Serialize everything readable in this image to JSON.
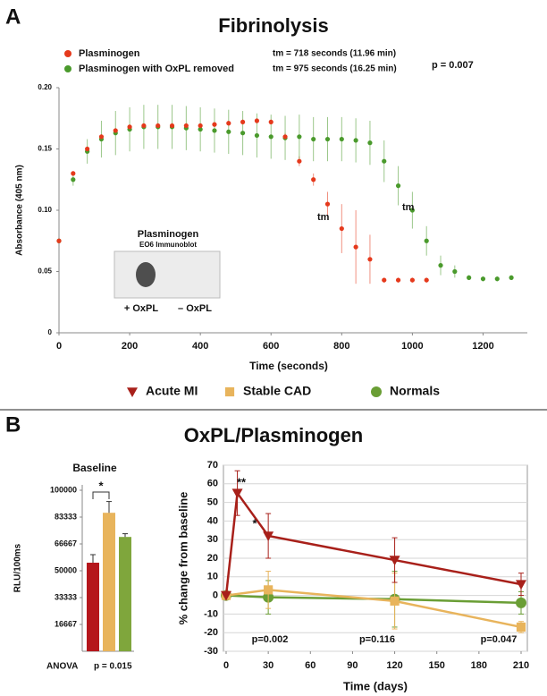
{
  "panel_labels": [
    "A",
    "B"
  ],
  "chart_data": [
    {
      "type": "scatter",
      "title": "Fibrinolysis",
      "x_label": "Time (seconds)",
      "y_label": "Absorbance (405 nm)",
      "xlim": [
        0,
        1300
      ],
      "xticks": [
        0,
        200,
        400,
        600,
        800,
        1000,
        1200
      ],
      "ylim": [
        0,
        0.2
      ],
      "yticks": [
        0,
        0.05,
        {
          "value": 0.1,
          "label": "0.10"
        },
        0.15,
        {
          "value": 0.2,
          "label": "0.20"
        }
      ],
      "series": [
        {
          "name": "Plasminogen",
          "color": "#e5391c",
          "tm_label": "tm =  718 seconds (11.96 min)",
          "x": [
            0,
            40,
            80,
            120,
            160,
            200,
            240,
            280,
            320,
            360,
            400,
            440,
            480,
            520,
            560,
            600,
            640,
            680,
            720,
            760,
            800,
            840,
            880,
            920,
            960,
            1000,
            1040
          ],
          "values": [
            0.075,
            0.13,
            0.15,
            0.16,
            0.165,
            0.168,
            0.169,
            0.169,
            0.169,
            0.169,
            0.169,
            0.17,
            0.171,
            0.172,
            0.173,
            0.172,
            0.16,
            0.14,
            0.125,
            0.105,
            0.085,
            0.07,
            0.06,
            0.043,
            0.043,
            0.043,
            0.043
          ],
          "errors": [
            0.002,
            0.002,
            0.002,
            0.002,
            0.002,
            0.002,
            0.002,
            0.002,
            0.002,
            0.002,
            0.002,
            0.002,
            0.002,
            0.002,
            0.002,
            0.002,
            0.003,
            0.004,
            0.005,
            0.01,
            0.02,
            0.03,
            0.02,
            0.002,
            0.002,
            0.002,
            0.002
          ]
        },
        {
          "name": "Plasminogen with OxPL removed",
          "color": "#4a9a2c",
          "tm_label": "tm =  975 seconds (16.25 min)",
          "x": [
            0,
            40,
            80,
            120,
            160,
            200,
            240,
            280,
            320,
            360,
            400,
            440,
            480,
            520,
            560,
            600,
            640,
            680,
            720,
            760,
            800,
            840,
            880,
            920,
            960,
            1000,
            1040,
            1080,
            1120,
            1160,
            1200,
            1240,
            1280
          ],
          "values": [
            0.075,
            0.125,
            0.148,
            0.158,
            0.163,
            0.166,
            0.168,
            0.168,
            0.168,
            0.167,
            0.166,
            0.165,
            0.164,
            0.163,
            0.161,
            0.16,
            0.159,
            0.16,
            0.158,
            0.158,
            0.158,
            0.157,
            0.155,
            0.14,
            0.12,
            0.1,
            0.075,
            0.055,
            0.05,
            0.045,
            0.044,
            0.044,
            0.045
          ],
          "errors": [
            0.002,
            0.005,
            0.01,
            0.015,
            0.018,
            0.018,
            0.018,
            0.018,
            0.018,
            0.018,
            0.018,
            0.018,
            0.018,
            0.018,
            0.018,
            0.018,
            0.018,
            0.018,
            0.018,
            0.018,
            0.018,
            0.018,
            0.018,
            0.017,
            0.016,
            0.015,
            0.012,
            0.008,
            0.005,
            0.002,
            0.002,
            0.002,
            0.002
          ]
        }
      ],
      "p_value": "p = 0.007",
      "curve_labels": [
        "tm",
        "tm"
      ],
      "inset": {
        "title": "Plasminogen",
        "subtitle": "EO6 Immunoblot",
        "labels": [
          "+ OxPL",
          "– OxPL"
        ]
      }
    },
    {
      "type": "bar",
      "title": "Baseline",
      "y_label": "RLU/100ms",
      "categories": [
        null,
        null,
        null
      ],
      "values": [
        55000,
        86000,
        71000
      ],
      "errors": [
        5000,
        7000,
        2000
      ],
      "colors": [
        "#b5161b",
        "#e8b45c",
        "#7fa63c"
      ],
      "ylim": [
        0,
        100000
      ],
      "yticks": [
        16667,
        33333,
        50000,
        66667,
        83333,
        100000
      ],
      "significance": "*",
      "stat_test": "ANOVA",
      "p_value": "p = 0.015"
    },
    {
      "type": "line",
      "title": "OxPL/Plasminogen",
      "x_label": "Time (days)",
      "y_label": "% change from baseline",
      "xlim": [
        0,
        210
      ],
      "xticks": [
        0,
        30,
        60,
        90,
        120,
        150,
        180,
        210
      ],
      "ylim": [
        -30,
        70
      ],
      "yticks": [
        -30,
        -20,
        -10,
        0,
        10,
        20,
        30,
        40,
        50,
        60,
        70
      ],
      "grid": true,
      "series": [
        {
          "name": "Acute MI",
          "color": "#a8201a",
          "marker": "triangle",
          "x": [
            0,
            8,
            30,
            120,
            210
          ],
          "values": [
            0,
            55,
            32,
            19,
            6
          ],
          "errors": [
            0,
            12,
            12,
            12,
            6
          ]
        },
        {
          "name": "Stable CAD",
          "color": "#e8b45c",
          "marker": "square",
          "x": [
            0,
            30,
            120,
            210
          ],
          "values": [
            0,
            3,
            -3,
            -17
          ],
          "errors": [
            0,
            10,
            15,
            3
          ]
        },
        {
          "name": "Normals",
          "color": "#6a9e35",
          "marker": "circle",
          "x": [
            0,
            30,
            120,
            210
          ],
          "values": [
            0,
            -1,
            -2,
            -4
          ],
          "errors": [
            0,
            9,
            15,
            6
          ]
        }
      ],
      "annotations": [
        "**",
        "*",
        "p=0.002",
        "p=0.116",
        "p=0.047"
      ]
    }
  ]
}
